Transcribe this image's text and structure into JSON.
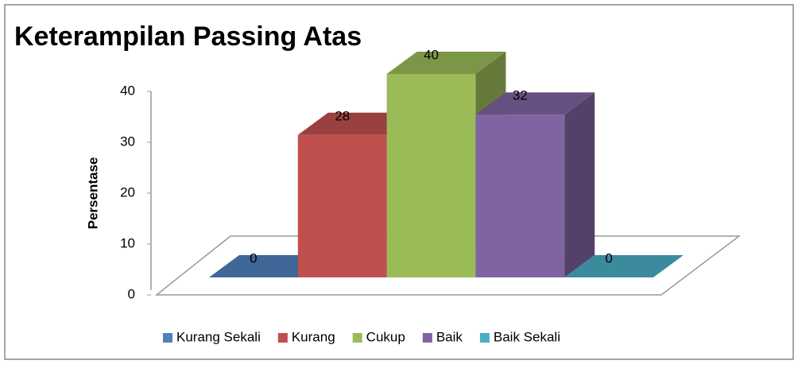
{
  "chart_data": {
    "type": "bar3d",
    "title": "Keterampilan Passing Atas",
    "y_label": "Persentase",
    "categories": [
      "Kurang Sekali",
      "Kurang",
      "Cukup",
      "Baik",
      "Baik Sekali"
    ],
    "values": [
      0,
      28,
      40,
      32,
      0
    ],
    "colors": [
      "#4f81bd",
      "#c0504d",
      "#9bbb59",
      "#8064a2",
      "#4bacc6"
    ],
    "ylim": [
      0,
      40
    ],
    "yticks": [
      0,
      10,
      20,
      30,
      40
    ],
    "legend": "bottom"
  }
}
